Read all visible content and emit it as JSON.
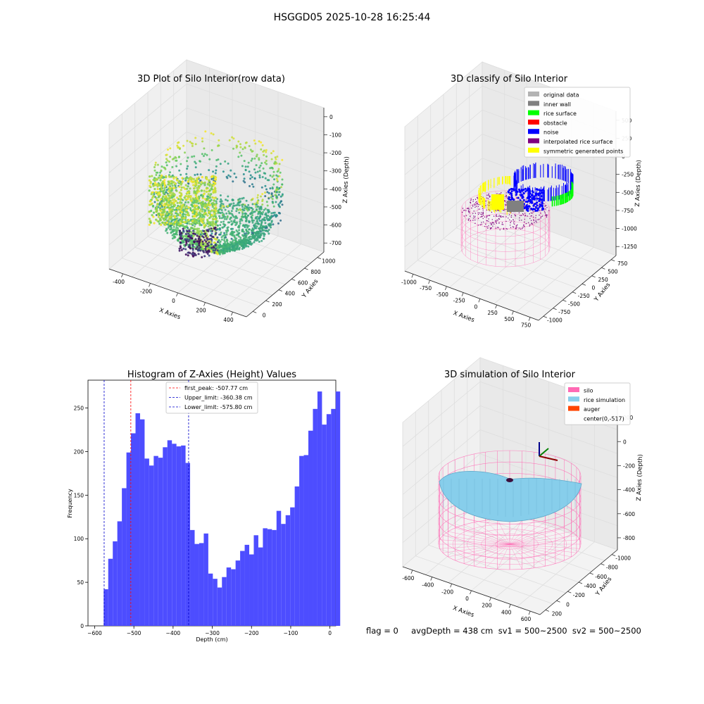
{
  "figure": {
    "title": "HSGGD05 2025-10-28 16:25:44",
    "footer": "flag = 0     avgDepth = 438 cm  sv1 = 500~2500  sv2 = 500~2500"
  },
  "colors": {
    "hist_bar": "#4d4dff",
    "first_peak_line": "#ff0000",
    "limit_lines": "#0000cc",
    "silo_wire": "#ff69b4",
    "rice_simulation": "#87ceeb",
    "auger": "#ff4500",
    "grid": "#e6e6e6"
  },
  "chart_data": [
    {
      "type": "scatter",
      "subtype": "3d",
      "title": "3D Plot of Silo Interior(row data)",
      "xlabel": "X Axies",
      "ylabel": "Y Axies",
      "zlabel": "Z Axies (Depth)",
      "xticks": [
        "-400",
        "-200",
        "0",
        "200",
        "400"
      ],
      "yticks": [
        "0",
        "200",
        "400",
        "600",
        "800",
        "1000"
      ],
      "zticks": [
        "0",
        "-100",
        "-200",
        "-300",
        "-400",
        "-500",
        "-600",
        "-700"
      ],
      "colormap": "viridis",
      "grid": true
    },
    {
      "type": "scatter",
      "subtype": "3d",
      "title": "3D classify of Silo Interior",
      "xlabel": "X Axies",
      "ylabel": "Y Axies",
      "zlabel": "Z Axies (Depth)",
      "xticks": [
        "-1000",
        "-750",
        "-500",
        "-250",
        "0",
        "250",
        "500",
        "750"
      ],
      "yticks": [
        "-1000",
        "-750",
        "-500",
        "-250",
        "0",
        "250",
        "500",
        "750"
      ],
      "zticks": [
        "500",
        "250",
        "0",
        "-250",
        "-500",
        "-750",
        "-1000",
        "-1250"
      ],
      "legend_position": "top-right",
      "legend": [
        {
          "label": "original data",
          "color": "#b3b3b3"
        },
        {
          "label": "inner wall",
          "color": "#808080"
        },
        {
          "label": "rice surface",
          "color": "#00ff00"
        },
        {
          "label": "obstacle",
          "color": "#ff0000"
        },
        {
          "label": "noise",
          "color": "#0000ff"
        },
        {
          "label": "interpolated rice surface",
          "color": "#800080"
        },
        {
          "label": "symmetric generated points",
          "color": "#ffff00"
        }
      ],
      "grid": true
    },
    {
      "type": "bar",
      "subtype": "histogram",
      "title": "Histogram of Z-Axies (Height) Values",
      "xlabel": "Depth (cm)",
      "ylabel": "Frequency",
      "xlim": [
        -617,
        15
      ],
      "ylim": [
        0,
        282
      ],
      "xticks": [
        -600,
        -500,
        -400,
        -300,
        -200,
        -100,
        0
      ],
      "yticks": [
        0,
        50,
        100,
        150,
        200,
        250
      ],
      "bin_start": -577,
      "bin_width": 11.6,
      "values": [
        42,
        77,
        97,
        120,
        158,
        199,
        221,
        244,
        237,
        192,
        184,
        195,
        193,
        205,
        213,
        209,
        206,
        207,
        187,
        110,
        94,
        95,
        106,
        60,
        54,
        44,
        56,
        67,
        65,
        75,
        86,
        93,
        82,
        104,
        90,
        112,
        111,
        110,
        132,
        117,
        127,
        136,
        160,
        195,
        196,
        224,
        249,
        269,
        231,
        243,
        249,
        269
      ],
      "vlines": [
        {
          "label": "first_peak: -507.77 cm",
          "x": -507.77,
          "color": "#ff0000"
        },
        {
          "label": "Upper_limit: -360.38 cm",
          "x": -360.38,
          "color": "#0000cc"
        },
        {
          "label": "Lower_limit: -575.80 cm",
          "x": -575.8,
          "color": "#0000cc"
        }
      ],
      "legend_position": "top-center"
    },
    {
      "type": "scatter",
      "subtype": "3d-surface",
      "title": "3D simulation of Silo Interior",
      "xlabel": "X Axies",
      "ylabel": "Y Axies",
      "zlabel": "Z Axies (Depth)",
      "xticks": [
        "-600",
        "-400",
        "-200",
        "0",
        "200",
        "400",
        "600"
      ],
      "yticks": [
        "200",
        "0",
        "-200",
        "-400",
        "-600",
        "-800",
        "-1000"
      ],
      "zticks": [
        "200",
        "0",
        "-200",
        "-400",
        "-600",
        "-800"
      ],
      "legend_position": "top-right",
      "legend": [
        {
          "label": "silo",
          "color": "#ff69b4"
        },
        {
          "label": "rice simulation",
          "color": "#87ceeb"
        },
        {
          "label": "auger",
          "color": "#ff4500"
        },
        {
          "label": "center(0,-517)",
          "color": ""
        }
      ],
      "grid": true
    }
  ]
}
